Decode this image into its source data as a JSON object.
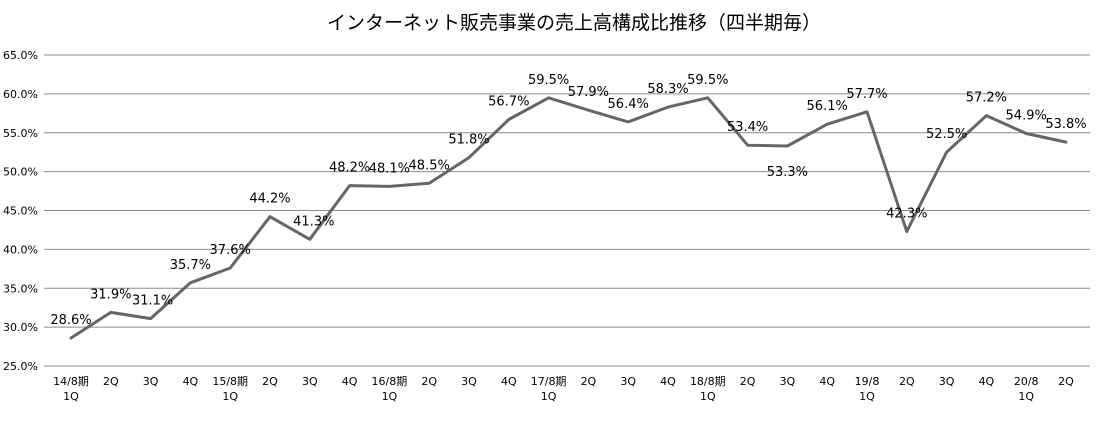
{
  "chart_data": {
    "type": "line",
    "title": "インターネット販売事業の売上高構成比推移（四半期毎）",
    "xlabel": "",
    "ylabel": "",
    "ylim": [
      25.0,
      65.0
    ],
    "y_ticks": [
      "25.0%",
      "30.0%",
      "35.0%",
      "40.0%",
      "45.0%",
      "50.0%",
      "55.0%",
      "60.0%",
      "65.0%"
    ],
    "y_tick_step": 5,
    "grid": true,
    "legend": "none",
    "line_color": "#666666",
    "categories": [
      [
        "14/8期",
        "1Q"
      ],
      [
        "2Q"
      ],
      [
        "3Q"
      ],
      [
        "4Q"
      ],
      [
        "15/8期",
        "1Q"
      ],
      [
        "2Q"
      ],
      [
        "3Q"
      ],
      [
        "4Q"
      ],
      [
        "16/8期",
        "1Q"
      ],
      [
        "2Q"
      ],
      [
        "3Q"
      ],
      [
        "4Q"
      ],
      [
        "17/8期",
        "1Q"
      ],
      [
        "2Q"
      ],
      [
        "3Q"
      ],
      [
        "4Q"
      ],
      [
        "18/8期",
        "1Q"
      ],
      [
        "2Q"
      ],
      [
        "3Q"
      ],
      [
        "4Q"
      ],
      [
        "19/8",
        "1Q"
      ],
      [
        "2Q"
      ],
      [
        "3Q"
      ],
      [
        "4Q"
      ],
      [
        "20/8",
        "1Q"
      ],
      [
        "2Q"
      ]
    ],
    "series": [
      {
        "values": [
          28.6,
          31.9,
          31.1,
          35.7,
          37.6,
          44.2,
          41.3,
          48.2,
          48.1,
          48.5,
          51.8,
          56.7,
          59.5,
          57.9,
          56.4,
          58.3,
          59.5,
          53.4,
          53.3,
          56.1,
          57.7,
          42.3,
          52.5,
          57.2,
          54.9,
          53.8
        ],
        "labels": [
          "28.6%",
          "31.9%",
          "31.1%",
          "35.7%",
          "37.6%",
          "44.2%",
          "41.3%",
          "48.2%",
          "48.1%",
          "48.5%",
          "51.8%",
          "56.7%",
          "59.5%",
          "57.9%",
          "56.4%",
          "58.3%",
          "59.5%",
          "53.4%",
          "53.3%",
          "56.1%",
          "57.7%",
          "42.3%",
          "52.5%",
          "57.2%",
          "54.9%",
          "53.8%"
        ]
      }
    ]
  }
}
